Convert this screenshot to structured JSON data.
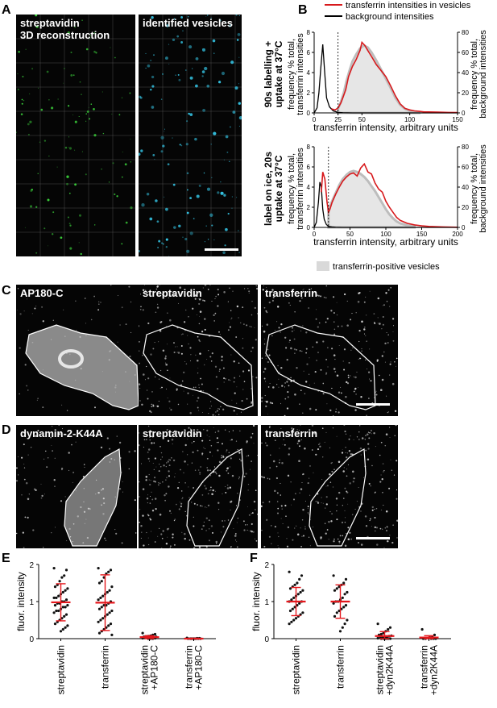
{
  "panels": {
    "A": {
      "letter": "A",
      "left_label": "streptavidin\n3D reconstruction",
      "right_label": "identified vesicles"
    },
    "B": {
      "letter": "B",
      "legend": [
        "transferrin intensities in vesicles",
        "background intensities",
        "transferrin-positive vesicles"
      ],
      "top": {
        "side_label": "90s labelling +\nuptake at 37°C"
      },
      "bottom": {
        "side_label": "label on ice, 20s\nuptake at 37°C"
      }
    },
    "C": {
      "letter": "C",
      "labels": [
        "AP180-C",
        "streptavidin",
        "transferrin"
      ]
    },
    "D": {
      "letter": "D",
      "labels": [
        "dynamin-2-K44A",
        "streptavidin",
        "transferrin"
      ]
    },
    "E": {
      "letter": "E"
    },
    "F": {
      "letter": "F"
    }
  },
  "chart_data": [
    {
      "id": "B-top",
      "type": "line",
      "xlabel": "transferrin intensity, arbitrary units",
      "ylabel": "frequency % total,\ntransferrin intensities",
      "ylabel_right": "frequency % total,\nbackground intensities",
      "xlim": [
        0,
        150
      ],
      "ylim": [
        0,
        8
      ],
      "ylim_right": [
        0,
        80
      ],
      "xticks": [
        0,
        25,
        50,
        100,
        150
      ],
      "yticks": [
        0,
        2,
        4,
        6,
        8
      ],
      "yticks_right": [
        0,
        20,
        40,
        60,
        80
      ],
      "threshold_x": 25,
      "series": [
        {
          "name": "transferrin intensities in vesicles",
          "color": "#d7191c",
          "x": [
            18,
            22,
            25,
            28,
            30,
            33,
            36,
            40,
            44,
            48,
            50,
            53,
            56,
            60,
            65,
            70,
            75,
            80,
            85,
            90,
            95,
            100,
            105,
            110,
            115,
            120,
            130,
            140,
            150
          ],
          "y": [
            0.4,
            0.3,
            0.5,
            1.0,
            1.5,
            2.3,
            3.6,
            4.6,
            5.3,
            6.2,
            7.0,
            6.7,
            6.2,
            5.6,
            4.8,
            4.2,
            3.6,
            2.7,
            1.7,
            0.9,
            0.45,
            0.3,
            0.2,
            0.15,
            0.1,
            0.1,
            0.08,
            0.05,
            0.03
          ]
        },
        {
          "name": "background intensities",
          "color": "#000000",
          "axis": "right",
          "x": [
            0,
            3,
            5,
            7,
            9,
            11,
            13,
            16,
            20,
            25,
            30,
            40,
            50,
            70,
            100,
            150
          ],
          "y": [
            0,
            5,
            20,
            45,
            68,
            40,
            15,
            6,
            2,
            0.5,
            0.2,
            0,
            0,
            0,
            0,
            0
          ]
        },
        {
          "name": "transferrin-positive vesicles",
          "color": "#cccccc",
          "x": [
            25,
            28,
            31,
            34,
            37,
            40,
            44,
            48,
            52,
            56,
            60,
            65,
            70,
            75,
            80,
            85,
            90,
            95,
            100,
            105,
            110
          ],
          "y": [
            0.4,
            1.1,
            2.0,
            3.2,
            4.2,
            5.1,
            5.8,
            6.4,
            6.7,
            6.5,
            6.0,
            5.2,
            4.3,
            3.4,
            2.5,
            1.5,
            0.8,
            0.4,
            0.2,
            0.1,
            0.05
          ]
        }
      ]
    },
    {
      "id": "B-bottom",
      "type": "line",
      "xlabel": "transferrin intensity, arbitrary units",
      "ylabel": "frequency % total,\ntransferrin intensities",
      "ylabel_right": "frequency % total,\nbackground intensities",
      "xlim": [
        0,
        200
      ],
      "ylim": [
        0,
        8
      ],
      "ylim_right": [
        0,
        80
      ],
      "xticks": [
        0,
        50,
        100,
        150,
        200
      ],
      "yticks": [
        0,
        2,
        4,
        6,
        8
      ],
      "yticks_right": [
        0,
        20,
        40,
        60,
        80
      ],
      "threshold_x": 20,
      "series": [
        {
          "name": "transferrin intensities in vesicles",
          "color": "#d7191c",
          "x": [
            10,
            12,
            15,
            18,
            20,
            22,
            25,
            30,
            35,
            40,
            45,
            50,
            55,
            60,
            65,
            70,
            75,
            80,
            85,
            90,
            95,
            100,
            105,
            110,
            115,
            120,
            130,
            140,
            150,
            160,
            180,
            200
          ],
          "y": [
            3.5,
            5.5,
            4.8,
            2.5,
            1.5,
            1.8,
            2.5,
            3.3,
            4.0,
            4.6,
            5.0,
            5.3,
            5.4,
            5.1,
            5.9,
            6.3,
            5.5,
            5.3,
            4.4,
            3.8,
            3.5,
            2.6,
            2.0,
            1.5,
            1.0,
            0.7,
            0.4,
            0.25,
            0.15,
            0.1,
            0.05,
            0.02
          ]
        },
        {
          "name": "background intensities",
          "color": "#000000",
          "axis": "right",
          "x": [
            0,
            3,
            6,
            8,
            10,
            12,
            14,
            17,
            20,
            25,
            30,
            40,
            60,
            100,
            200
          ],
          "y": [
            0,
            5,
            25,
            45,
            40,
            18,
            8,
            3,
            1,
            0.5,
            0.2,
            0,
            0,
            0,
            0
          ]
        },
        {
          "name": "transferrin-positive vesicles",
          "color": "#cccccc",
          "x": [
            20,
            25,
            30,
            35,
            40,
            45,
            50,
            55,
            60,
            65,
            70,
            75,
            80,
            85,
            90,
            95,
            100,
            105,
            110,
            115,
            120,
            130,
            140
          ],
          "y": [
            1.8,
            2.6,
            3.4,
            4.2,
            4.8,
            5.2,
            5.5,
            5.6,
            5.5,
            5.3,
            5.0,
            4.6,
            4.1,
            3.6,
            3.0,
            2.4,
            1.8,
            1.3,
            0.9,
            0.6,
            0.4,
            0.2,
            0.1
          ]
        }
      ]
    },
    {
      "id": "E",
      "type": "scatter",
      "ylabel": "fluor. intensity",
      "ylim": [
        0,
        2
      ],
      "yticks": [
        0,
        1,
        2
      ],
      "categories": [
        "streptavidin",
        "transferrin",
        "streptavidin\n+AP180-C",
        "transferrin\n+AP180-C"
      ],
      "means": [
        0.98,
        0.97,
        0.04,
        0.0
      ],
      "sd": [
        0.5,
        0.75,
        0.04,
        0.01
      ],
      "points": [
        [
          1.9,
          1.85,
          1.7,
          1.65,
          1.55,
          1.45,
          1.4,
          1.35,
          1.3,
          1.25,
          1.2,
          1.15,
          1.1,
          1.1,
          1.05,
          1.0,
          1.0,
          0.95,
          0.95,
          0.9,
          0.9,
          0.85,
          0.85,
          0.8,
          0.75,
          0.75,
          0.7,
          0.65,
          0.6,
          0.55,
          0.5,
          0.45,
          0.4,
          0.35,
          0.3,
          0.25,
          0.2
        ],
        [
          1.9,
          1.85,
          1.8,
          1.75,
          1.65,
          1.55,
          1.5,
          1.4,
          1.3,
          1.25,
          1.2,
          1.15,
          1.1,
          1.05,
          1.0,
          0.95,
          0.9,
          0.9,
          0.85,
          0.8,
          0.75,
          0.7,
          0.65,
          0.6,
          0.55,
          0.5,
          0.45,
          0.4,
          0.35,
          0.3,
          0.25,
          0.2,
          0.15,
          0.1
        ],
        [
          0.15,
          0.12,
          0.1,
          0.08,
          0.07,
          0.06,
          0.05,
          0.05,
          0.04,
          0.03,
          0.03,
          0.02,
          0.02,
          0.01,
          0.01,
          0.0,
          0.0,
          0.0
        ],
        [
          0.02,
          0.01,
          0.01,
          0.0,
          0.0,
          0.0,
          0.0,
          0.0,
          0.0,
          0.0,
          0.0,
          0.0
        ]
      ]
    },
    {
      "id": "F",
      "type": "scatter",
      "ylabel": "fluor. intensity",
      "ylim": [
        0,
        2
      ],
      "yticks": [
        0,
        1,
        2
      ],
      "categories": [
        "streptavidin",
        "transferrin",
        "streptavidin\n+dyn2K44A",
        "transferrin\n+dyn2K44A"
      ],
      "means": [
        1.0,
        1.0,
        0.07,
        0.03
      ],
      "sd": [
        0.38,
        0.45,
        0.12,
        0.05
      ],
      "points": [
        [
          1.8,
          1.7,
          1.6,
          1.5,
          1.45,
          1.4,
          1.35,
          1.3,
          1.25,
          1.2,
          1.15,
          1.1,
          1.05,
          1.0,
          1.0,
          0.95,
          0.9,
          0.85,
          0.8,
          0.75,
          0.7,
          0.65,
          0.6,
          0.55,
          0.5,
          0.45,
          0.4
        ],
        [
          1.7,
          1.6,
          1.5,
          1.45,
          1.4,
          1.35,
          1.3,
          1.25,
          1.2,
          1.1,
          1.05,
          1.0,
          1.0,
          0.95,
          0.9,
          0.85,
          0.8,
          0.75,
          0.7,
          0.6,
          0.5,
          0.4,
          0.3,
          0.2
        ],
        [
          0.4,
          0.3,
          0.25,
          0.2,
          0.15,
          0.12,
          0.1,
          0.08,
          0.07,
          0.05,
          0.04,
          0.03,
          0.02,
          0.01,
          0.0,
          0.0,
          0.0,
          0.0,
          0.0
        ],
        [
          0.25,
          0.1,
          0.05,
          0.03,
          0.02,
          0.0,
          0.0,
          0.0,
          0.0,
          0.0
        ]
      ]
    }
  ]
}
